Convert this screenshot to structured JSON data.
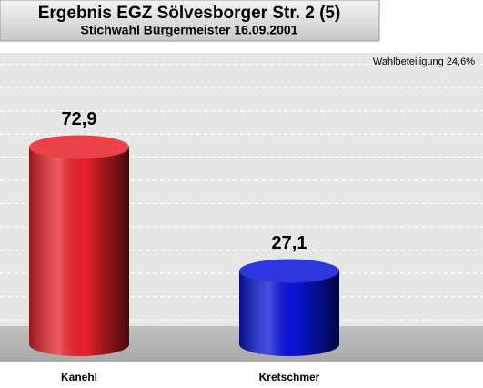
{
  "chart_data": {
    "type": "bar",
    "title": "Ergebnis EGZ Sölvesborger Str. 2 (5)",
    "subtitle": "Stichwahl Bürgermeister 16.09.2001",
    "annotation": "Wahlbeteiligung 24,6%",
    "categories": [
      "Kanehl",
      "Kretschmer"
    ],
    "values": [
      72.9,
      27.1
    ],
    "value_labels": [
      "72,9",
      "27,1"
    ],
    "colors": [
      "#e8222a",
      "#0a14d8"
    ],
    "ylim": [
      0,
      100
    ],
    "grid": true
  }
}
